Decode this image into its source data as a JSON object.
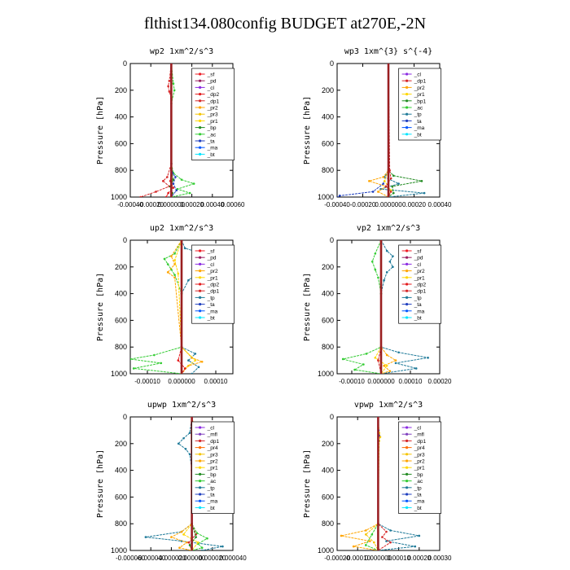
{
  "page_title": "flthist134.080config  BUDGET at270E,-2N",
  "colors": {
    "sf": "#ee1c24",
    "pd": "#9a1f60",
    "cl": "#8b2be2",
    "dp2": "#e31a1c",
    "dp1": "#d62728",
    "pr2": "#ffa500",
    "pr3": "#f5c400",
    "pr1": "#ffd700",
    "pr4": "#ff6f00",
    "bp": "#228b22",
    "ac": "#33cc33",
    "tp": "#1f7a99",
    "ta": "#1f3fbf",
    "ma": "#0055ff",
    "bt": "#00e5ff",
    "mfl": "#7f3fbf"
  },
  "chart_data": [
    {
      "type": "line",
      "title": "wp2  1xm^2/s^3",
      "ylabel": "Pressure [hPa]",
      "xlim": [
        -0.0004,
        0.0006
      ],
      "ylim": [
        1000,
        0
      ],
      "xticks": [
        -0.0004,
        -0.0002,
        0,
        0.0002,
        0.0004,
        0.0006
      ],
      "xtick_labels": [
        "-0.00040",
        "-0.00020",
        "0.000000",
        "0.00020",
        "0.00040",
        "0.00060"
      ],
      "yticks": [
        0,
        200,
        400,
        600,
        800,
        1000
      ],
      "legend": {
        "position": "top-right",
        "entries": [
          "_sf",
          "_pd",
          "_cl",
          "_dp2",
          "_dp1",
          "_pr2",
          "_pr3",
          "_pr1",
          "_bp",
          "_ac",
          "_ta",
          "_ma",
          "_bt"
        ]
      },
      "series": [
        {
          "key": "ac",
          "p": [
            0,
            150,
            200,
            300,
            750,
            820,
            870,
            900,
            940,
            970,
            1000
          ],
          "v": [
            0,
            2e-05,
            3e-05,
            0,
            0,
            2e-05,
            0.0001,
            0.00022,
            6e-05,
            0.00018,
            0
          ]
        },
        {
          "key": "dp1",
          "p": [
            0,
            130,
            170,
            210,
            260,
            750,
            850,
            880,
            920,
            960,
            1000
          ],
          "v": [
            0,
            -2e-05,
            -3e-05,
            -2e-05,
            0,
            0,
            -4e-05,
            -8e-05,
            -2e-05,
            -0.00015,
            -0.0003
          ]
        },
        {
          "key": "ta",
          "p": [
            0,
            750,
            820,
            850,
            900,
            950,
            1000
          ],
          "v": [
            0,
            0,
            1e-05,
            4e-05,
            2e-05,
            5e-05,
            0
          ]
        },
        {
          "key": "dp2",
          "p": [
            0,
            800,
            880,
            930,
            970,
            1000
          ],
          "v": [
            0,
            0,
            -1e-05,
            2e-05,
            -3e-05,
            -5e-05
          ]
        },
        {
          "key": "bp",
          "p": [
            0,
            800,
            870,
            920,
            970,
            1000
          ],
          "v": [
            0,
            0,
            2e-05,
            -1e-05,
            1e-05,
            0
          ]
        },
        {
          "key": "cl",
          "p": [
            0,
            1000
          ],
          "v": [
            0,
            0
          ]
        },
        {
          "key": "pd",
          "p": [
            0,
            1000
          ],
          "v": [
            0,
            0
          ]
        }
      ]
    },
    {
      "type": "line",
      "title": "wp3  1xm^{3} s^{-4}",
      "ylabel": "Pressure [hPa]",
      "xlim": [
        -0.0004,
        0.0004
      ],
      "ylim": [
        1000,
        0
      ],
      "xticks": [
        -0.0004,
        -0.0002,
        0,
        0.0002,
        0.0004
      ],
      "xtick_labels": [
        "-0.00040",
        "-0.00020",
        "0.000000",
        "0.00020",
        "0.00040"
      ],
      "yticks": [
        0,
        200,
        400,
        600,
        800,
        1000
      ],
      "legend": {
        "position": "top-right",
        "entries": [
          "_cl",
          "_dp1",
          "_pr2",
          "_pr1",
          "_bp1",
          "_ac",
          "_tp",
          "_ta",
          "_ma",
          "_bt"
        ]
      },
      "series": [
        {
          "key": "tp",
          "p": [
            0,
            800,
            850,
            900,
            940,
            970,
            1000
          ],
          "v": [
            0,
            0,
            -3e-05,
            8e-05,
            -6e-05,
            0.00028,
            0
          ]
        },
        {
          "key": "ta",
          "p": [
            0,
            800,
            900,
            960,
            990,
            1000
          ],
          "v": [
            0,
            0,
            -4e-05,
            -0.00012,
            -0.00038,
            -0.0004
          ]
        },
        {
          "key": "bp",
          "p": [
            0,
            800,
            840,
            880,
            920,
            970,
            1000
          ],
          "v": [
            0,
            0,
            4e-05,
            0.00026,
            3e-05,
            4e-05,
            0
          ]
        },
        {
          "key": "pr2",
          "p": [
            0,
            800,
            850,
            880,
            920,
            960,
            1000
          ],
          "v": [
            0,
            0,
            -4e-05,
            -0.00015,
            -2e-05,
            -8e-05,
            0
          ]
        },
        {
          "key": "pr1",
          "p": [
            0,
            800,
            880,
            950,
            1000
          ],
          "v": [
            0,
            0,
            -3e-05,
            2e-05,
            0
          ]
        },
        {
          "key": "dp1",
          "p": [
            0,
            800,
            860,
            920,
            960,
            1000
          ],
          "v": [
            0,
            1e-05,
            2e-05,
            -2e-05,
            2e-05,
            0
          ]
        },
        {
          "key": "cl",
          "p": [
            0,
            1000
          ],
          "v": [
            0,
            0
          ]
        }
      ]
    },
    {
      "type": "line",
      "title": "up2  1xm^2/s^3",
      "ylabel": "Pressure [hPa]",
      "xlim": [
        -0.00015,
        0.00015
      ],
      "ylim": [
        1000,
        0
      ],
      "xticks": [
        -0.0001,
        0,
        0.0001
      ],
      "xtick_labels": [
        "-0.00010",
        "0.000000",
        "0.00010"
      ],
      "yticks": [
        0,
        200,
        400,
        600,
        800,
        1000
      ],
      "legend": {
        "position": "top-right",
        "entries": [
          "_sf",
          "_pd",
          "_cl",
          "_pr2",
          "_pr1",
          "_dp2",
          "_dp1",
          "_tp",
          "_ta",
          "_ma",
          "_bt"
        ]
      },
      "series": [
        {
          "key": "tp",
          "p": [
            0,
            60,
            100,
            140,
            180,
            220,
            260,
            300,
            400,
            800,
            850,
            900,
            950,
            1000
          ],
          "v": [
            0,
            1e-05,
            6e-05,
            0.0001,
            7e-05,
            9e-05,
            4e-05,
            2e-05,
            0,
            0,
            4e-05,
            2e-05,
            5e-05,
            3e-05
          ]
        },
        {
          "key": "ac",
          "p": [
            0,
            100,
            140,
            180,
            220,
            260,
            400,
            800,
            860,
            890,
            920,
            960,
            1000
          ],
          "v": [
            0,
            -2e-05,
            -5e-05,
            -4e-05,
            -3e-05,
            -2e-05,
            0,
            0,
            -8e-05,
            -0.00015,
            -6e-05,
            -0.00014,
            0
          ]
        },
        {
          "key": "pr2",
          "p": [
            0,
            120,
            180,
            240,
            280,
            800,
            880,
            910,
            940,
            1000
          ],
          "v": [
            0,
            -3e-05,
            -2e-05,
            -4e-05,
            -2e-05,
            0,
            3e-05,
            6e-05,
            2e-05,
            0
          ]
        },
        {
          "key": "pr1",
          "p": [
            0,
            150,
            250,
            800,
            900,
            960,
            1000
          ],
          "v": [
            0,
            -2e-05,
            -1e-05,
            0,
            4e-05,
            1e-05,
            0
          ]
        },
        {
          "key": "dp2",
          "p": [
            0,
            800,
            900,
            960,
            1000
          ],
          "v": [
            0,
            0,
            -1e-05,
            1e-05,
            0
          ]
        },
        {
          "key": "sf",
          "p": [
            0,
            1000
          ],
          "v": [
            0,
            0
          ]
        },
        {
          "key": "pd",
          "p": [
            0,
            1000
          ],
          "v": [
            0,
            0
          ]
        }
      ]
    },
    {
      "type": "line",
      "title": "vp2  1xm^2/s^3",
      "ylabel": "Pressure [hPa]",
      "xlim": [
        -0.00015,
        0.0002
      ],
      "ylim": [
        1000,
        0
      ],
      "xticks": [
        -0.0001,
        0,
        0.0001,
        0.0002
      ],
      "xtick_labels": [
        "-0.00010",
        "0.000000",
        "0.00010",
        "0.00020"
      ],
      "yticks": [
        0,
        200,
        400,
        600,
        800,
        1000
      ],
      "legend": {
        "position": "top-right",
        "entries": [
          "_sf",
          "_pd",
          "_cl",
          "_pr2",
          "_pr1",
          "_dp2",
          "_dp1",
          "_tp",
          "_ta",
          "_ma",
          "_bt"
        ]
      },
      "series": [
        {
          "key": "tp",
          "p": [
            0,
            80,
            120,
            160,
            200,
            240,
            300,
            400,
            800,
            840,
            880,
            920,
            960,
            1000
          ],
          "v": [
            0,
            2e-05,
            4e-05,
            3e-05,
            4e-05,
            2e-05,
            1e-05,
            0,
            0,
            6e-05,
            0.00016,
            5e-05,
            0.00012,
            0
          ]
        },
        {
          "key": "ac",
          "p": [
            0,
            100,
            160,
            220,
            280,
            400,
            800,
            850,
            890,
            930,
            970,
            1000
          ],
          "v": [
            0,
            -2e-05,
            -3e-05,
            -2e-05,
            -1e-05,
            0,
            0,
            -5e-05,
            -0.00013,
            -6e-05,
            -9e-05,
            0
          ]
        },
        {
          "key": "pr2",
          "p": [
            0,
            800,
            860,
            900,
            940,
            980,
            1000
          ],
          "v": [
            0,
            0,
            2e-05,
            5e-05,
            1e-05,
            3e-05,
            0
          ]
        },
        {
          "key": "pr1",
          "p": [
            0,
            800,
            880,
            940,
            1000
          ],
          "v": [
            0,
            0,
            -2e-05,
            2e-05,
            0
          ]
        },
        {
          "key": "dp1",
          "p": [
            0,
            800,
            900,
            1000
          ],
          "v": [
            0,
            0,
            -1e-05,
            0
          ]
        },
        {
          "key": "sf",
          "p": [
            0,
            1000
          ],
          "v": [
            0,
            0
          ]
        },
        {
          "key": "pd",
          "p": [
            0,
            1000
          ],
          "v": [
            0,
            0
          ]
        }
      ]
    },
    {
      "type": "line",
      "title": "upwp  1xm^2/s^3",
      "ylabel": "Pressure [hPa]",
      "xlim": [
        -6e-05,
        4e-05
      ],
      "ylim": [
        1000,
        0
      ],
      "xticks": [
        -6e-05,
        -4e-05,
        -2e-05,
        0,
        2e-05,
        4e-05
      ],
      "xtick_labels": [
        "-0.000060",
        "-0.000040",
        "-0.000020",
        "0.000000",
        "0.000020",
        "0.000040"
      ],
      "yticks": [
        0,
        200,
        400,
        600,
        800,
        1000
      ],
      "legend": {
        "position": "top-right",
        "entries": [
          "_cl",
          "_mfl",
          "_dp1",
          "_pr4",
          "_pr3",
          "_pr2",
          "_pr1",
          "_bp",
          "_ac",
          "_tp",
          "_ta",
          "_ma",
          "_bt"
        ]
      },
      "series": [
        {
          "key": "tp",
          "p": [
            0,
            120,
            160,
            200,
            240,
            280,
            400,
            800,
            860,
            900,
            930,
            970,
            1000
          ],
          "v": [
            0,
            -2e-06,
            -8e-06,
            -1.3e-05,
            -6e-06,
            -2e-06,
            0,
            0,
            -1e-05,
            -4.5e-05,
            -1e-05,
            3e-05,
            1e-05
          ]
        },
        {
          "key": "ac",
          "p": [
            0,
            800,
            870,
            910,
            950,
            980,
            1000
          ],
          "v": [
            0,
            0,
            5e-06,
            1.5e-05,
            6e-06,
            1e-05,
            0
          ]
        },
        {
          "key": "pr2",
          "p": [
            0,
            100,
            200,
            300,
            800,
            860,
            900,
            940,
            980,
            1000
          ],
          "v": [
            0,
            3e-06,
            2e-06,
            1e-06,
            0,
            -1e-05,
            -2e-05,
            -5e-06,
            -1.2e-05,
            0
          ]
        },
        {
          "key": "pr1",
          "p": [
            0,
            800,
            880,
            940,
            1000
          ],
          "v": [
            0,
            0,
            -8e-06,
            6e-06,
            0
          ]
        },
        {
          "key": "dp1",
          "p": [
            0,
            800,
            880,
            940,
            1000
          ],
          "v": [
            0,
            0,
            4e-06,
            -3e-06,
            0
          ]
        },
        {
          "key": "bp",
          "p": [
            0,
            800,
            900,
            960,
            1000
          ],
          "v": [
            0,
            0,
            4e-06,
            -2e-06,
            0
          ]
        },
        {
          "key": "cl",
          "p": [
            0,
            1000
          ],
          "v": [
            0,
            0
          ]
        }
      ]
    },
    {
      "type": "line",
      "title": "vpwp  1xm^2/s^3",
      "ylabel": "Pressure [hPa]",
      "xlim": [
        -0.0002,
        0.0003
      ],
      "ylim": [
        1000,
        0
      ],
      "xticks": [
        -0.0002,
        -0.0001,
        0,
        0.0001,
        0.0002,
        0.0003
      ],
      "xtick_labels": [
        "-0.00020",
        "-0.00010",
        "0.000000",
        "0.00010",
        "0.00020",
        "0.00030"
      ],
      "yticks": [
        0,
        200,
        400,
        600,
        800,
        1000
      ],
      "legend": {
        "position": "top-right",
        "entries": [
          "_cl",
          "_mfl",
          "_dp1",
          "_pr4",
          "_pr3",
          "_pr2",
          "_pr1",
          "_bp",
          "_ac",
          "_tp",
          "_ta",
          "_ma",
          "_bt"
        ]
      },
      "series": [
        {
          "key": "tp",
          "p": [
            0,
            800,
            850,
            890,
            930,
            970,
            1000
          ],
          "v": [
            0,
            0,
            6e-05,
            0.0002,
            4e-05,
            0.00018,
            0
          ]
        },
        {
          "key": "pr2",
          "p": [
            0,
            800,
            850,
            890,
            930,
            970,
            1000
          ],
          "v": [
            0,
            0,
            -6e-05,
            -0.00018,
            -4e-05,
            -0.00012,
            0
          ]
        },
        {
          "key": "pr3",
          "p": [
            0,
            120,
            150,
            180,
            800,
            880,
            940,
            1000
          ],
          "v": [
            0,
            5e-06,
            1e-05,
            5e-06,
            0,
            -6e-05,
            -2e-05,
            0
          ]
        },
        {
          "key": "ac",
          "p": [
            0,
            800,
            880,
            960,
            1000
          ],
          "v": [
            0,
            0,
            -3e-05,
            -6e-05,
            0
          ]
        },
        {
          "key": "dp1",
          "p": [
            0,
            800,
            860,
            900,
            940,
            1000
          ],
          "v": [
            0,
            0,
            4e-05,
            2e-05,
            6e-05,
            0
          ]
        },
        {
          "key": "ta",
          "p": [
            0,
            100,
            140,
            180,
            1000
          ],
          "v": [
            0,
            2e-06,
            4e-06,
            1e-06,
            0
          ]
        },
        {
          "key": "cl",
          "p": [
            0,
            1000
          ],
          "v": [
            0,
            0
          ]
        }
      ]
    }
  ]
}
